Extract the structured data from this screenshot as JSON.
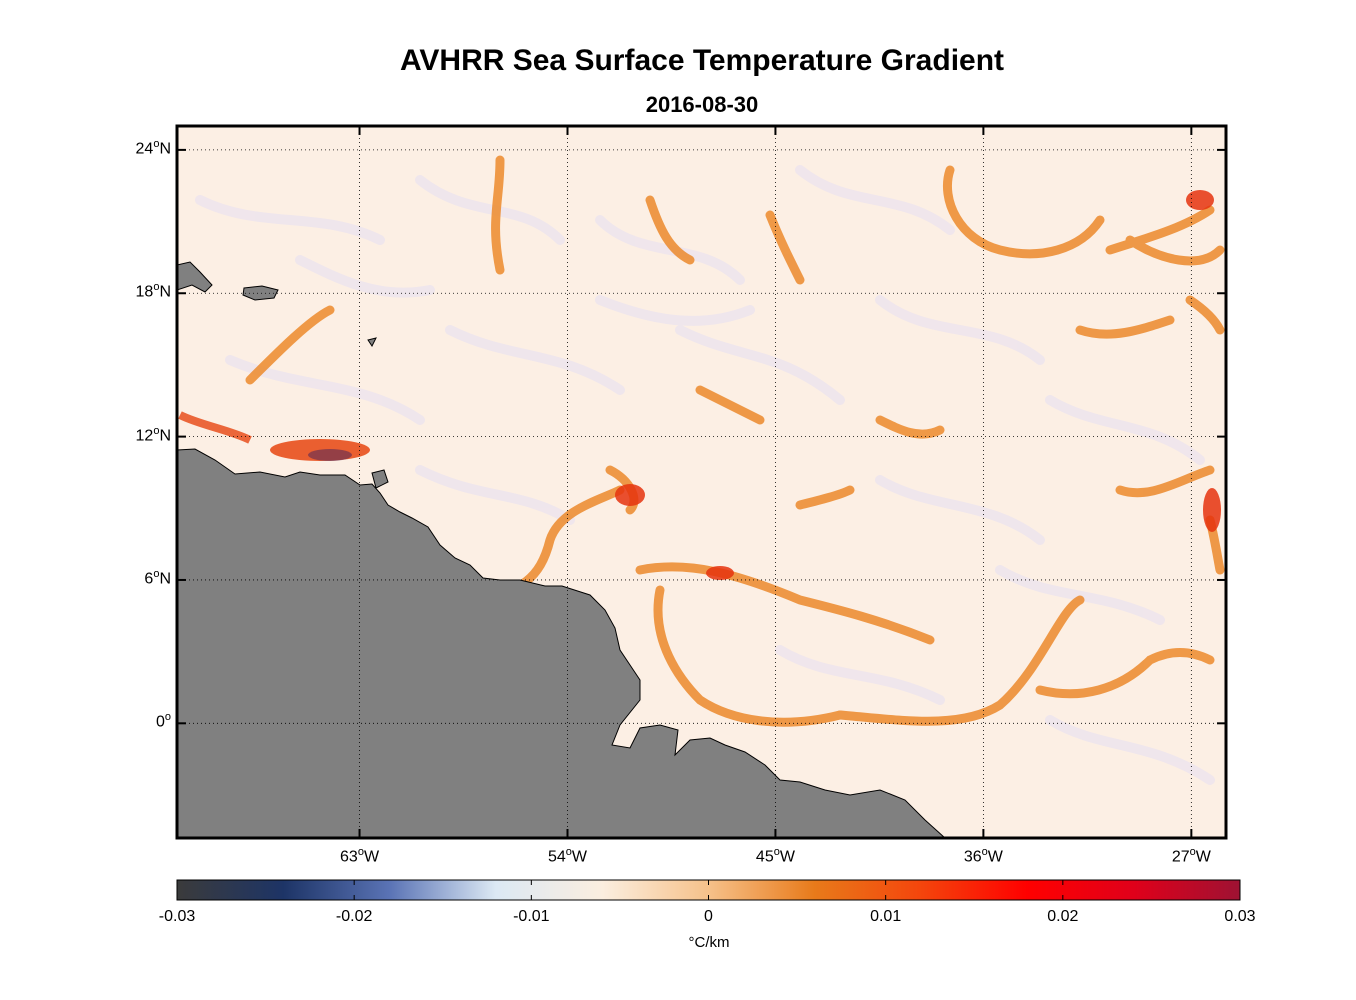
{
  "title": "AVHRR Sea Surface Temperature Gradient",
  "subtitle": "2016-08-30",
  "map": {
    "projection": "equirectangular",
    "lon_range": [
      -70.9,
      -25.5
    ],
    "lat_range": [
      -4.8,
      25.0
    ],
    "lon_ticks": [
      {
        "value": -63,
        "label": "63",
        "suffix": "W"
      },
      {
        "value": -54,
        "label": "54",
        "suffix": "W"
      },
      {
        "value": -45,
        "label": "45",
        "suffix": "W"
      },
      {
        "value": -36,
        "label": "36",
        "suffix": "W"
      },
      {
        "value": -27,
        "label": "27",
        "suffix": "W"
      }
    ],
    "lat_ticks": [
      {
        "value": 24,
        "label": "24",
        "suffix": "N"
      },
      {
        "value": 18,
        "label": "18",
        "suffix": "N"
      },
      {
        "value": 12,
        "label": "12",
        "suffix": "N"
      },
      {
        "value": 6,
        "label": "6",
        "suffix": "N"
      },
      {
        "value": 0,
        "label": "0",
        "suffix": ""
      }
    ],
    "degree_symbol": "o",
    "grid": "dotted",
    "land_color": "#808080",
    "ocean_background": "#fcefe4",
    "regions": [
      "South America",
      "Lesser Antilles",
      "Puerto Rico",
      "Hispaniola"
    ]
  },
  "colorbar": {
    "min": -0.03,
    "max": 0.03,
    "ticks": [
      "-0.03",
      "-0.02",
      "-0.01",
      "0",
      "0.01",
      "0.02",
      "0.03"
    ],
    "units": "°C/km",
    "colors": [
      "#3b3b3b",
      "#1d3466",
      "#5a73b5",
      "#dce9f4",
      "#fbeedf",
      "#f6c18a",
      "#e87a1a",
      "#f4450c",
      "#ff0000",
      "#e0001a",
      "#9e1233"
    ]
  }
}
